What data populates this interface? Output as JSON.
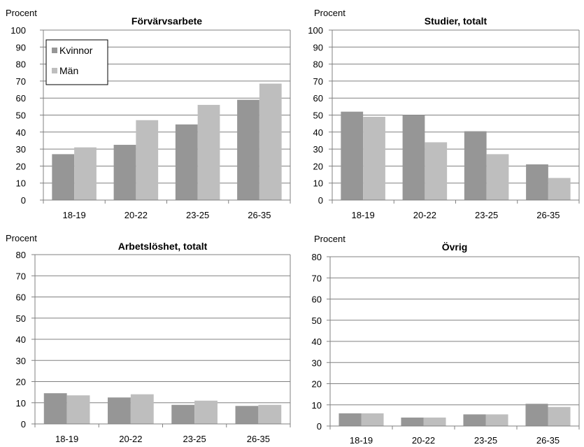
{
  "colors": {
    "kvinnor": "#969696",
    "man": "#bebebe",
    "grid": "#808080",
    "axis": "#808080"
  },
  "chart_data": [
    {
      "type": "bar",
      "title": "Förvärvsarbete",
      "ylabel": "Procent",
      "ylim": [
        0,
        100
      ],
      "ystep": 10,
      "categories": [
        "18-19",
        "20-22",
        "23-25",
        "26-35"
      ],
      "legend": "top-left",
      "series": [
        {
          "name": "Kvinnor",
          "values": [
            27,
            32.5,
            44.5,
            59
          ]
        },
        {
          "name": "Män",
          "values": [
            31,
            47,
            56,
            68.5
          ]
        }
      ]
    },
    {
      "type": "bar",
      "title": "Studier, totalt",
      "ylabel": "Procent",
      "ylim": [
        0,
        100
      ],
      "ystep": 10,
      "categories": [
        "18-19",
        "20-22",
        "23-25",
        "26-35"
      ],
      "series": [
        {
          "name": "Kvinnor",
          "values": [
            52,
            50,
            40.5,
            21
          ]
        },
        {
          "name": "Män",
          "values": [
            49,
            34,
            27,
            13
          ]
        }
      ]
    },
    {
      "type": "bar",
      "title": "Arbetslöshet, totalt",
      "ylabel": "Procent",
      "ylim": [
        0,
        80
      ],
      "ystep": 10,
      "categories": [
        "18-19",
        "20-22",
        "23-25",
        "26-35"
      ],
      "series": [
        {
          "name": "Kvinnor",
          "values": [
            14.5,
            12.5,
            9,
            8.5
          ]
        },
        {
          "name": "Män",
          "values": [
            13.5,
            14,
            11,
            9
          ]
        }
      ]
    },
    {
      "type": "bar",
      "title": "Övrig",
      "ylabel": "Procent",
      "ylim": [
        0,
        80
      ],
      "ystep": 10,
      "categories": [
        "18-19",
        "20-22",
        "23-25",
        "26-35"
      ],
      "series": [
        {
          "name": "Kvinnor",
          "values": [
            6,
            4,
            5.5,
            10.5
          ]
        },
        {
          "name": "Män",
          "values": [
            6,
            4,
            5.5,
            9
          ]
        }
      ]
    }
  ]
}
